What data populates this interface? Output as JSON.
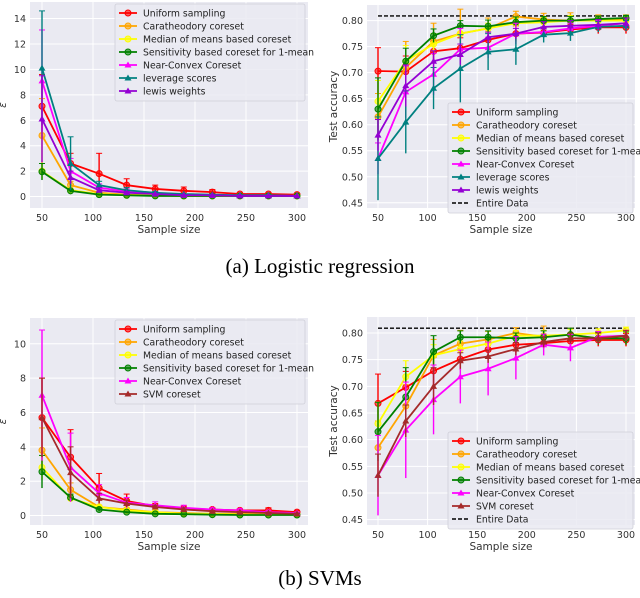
{
  "captions": [
    "(a)  Logistic regression",
    "(b)  SVMs"
  ],
  "chart_data": [
    {
      "type": "line",
      "xlabel": "Sample size",
      "ylabel": "ε",
      "x": [
        50,
        78,
        106,
        133,
        161,
        189,
        217,
        244,
        272,
        300
      ],
      "xticks": [
        50,
        100,
        150,
        200,
        250,
        300
      ],
      "yticks": [
        0,
        2,
        4,
        6,
        8,
        10,
        12,
        14
      ],
      "ylim": [
        -0.9,
        15.3
      ],
      "grid": true,
      "legend": "top-right",
      "series": [
        {
          "name": "Uniform sampling",
          "color": "#ff0000",
          "marker": "circle",
          "values": [
            7.1,
            2.6,
            1.8,
            0.9,
            0.6,
            0.45,
            0.35,
            0.2,
            0.2,
            0.15
          ],
          "err": [
            2.5,
            0.8,
            1.6,
            0.5,
            0.3,
            0.3,
            0.2,
            0.1,
            0.1,
            0.1
          ]
        },
        {
          "name": "Caratheodory coreset",
          "color": "#ffa500",
          "marker": "circle",
          "values": [
            4.8,
            0.9,
            0.3,
            0.15,
            0.1,
            0.05,
            0.05,
            0.05,
            0.05,
            0.05
          ],
          "err": [
            2.9,
            0.3,
            0.1,
            0.1,
            0,
            0,
            0,
            0,
            0,
            0
          ]
        },
        {
          "name": "Median of means based coreset",
          "color": "#ffff00",
          "marker": "circle",
          "values": [
            2.0,
            0.5,
            0.2,
            0.1,
            0.1,
            0.05,
            0.05,
            0.05,
            0.05,
            0.05
          ],
          "err": [
            0.6,
            0.1,
            0,
            0,
            0,
            0,
            0,
            0,
            0,
            0
          ]
        },
        {
          "name": "Sensitivity based coreset for 1-mean",
          "color": "#008000",
          "marker": "circle",
          "values": [
            1.95,
            0.45,
            0.15,
            0.1,
            0.05,
            0.05,
            0.05,
            0.05,
            0.05,
            0.05
          ],
          "err": [
            0.65,
            0.1,
            0,
            0,
            0,
            0,
            0,
            0,
            0,
            0
          ]
        },
        {
          "name": "Near-Convex Coreset",
          "color": "#ff00ff",
          "marker": "triangle",
          "values": [
            9.1,
            2.0,
            0.7,
            0.4,
            0.25,
            0.15,
            0.1,
            0.1,
            0.1,
            0.05
          ],
          "err": [
            4.0,
            1.0,
            0.3,
            0.2,
            0.1,
            0,
            0,
            0,
            0,
            0
          ]
        },
        {
          "name": "leverage scores",
          "color": "#008080",
          "marker": "triangle",
          "values": [
            10.1,
            2.6,
            0.9,
            0.5,
            0.3,
            0.2,
            0.15,
            0.1,
            0.1,
            0.05
          ],
          "err": [
            4.5,
            2.1,
            0.3,
            0.2,
            0.1,
            0,
            0,
            0,
            0,
            0
          ]
        },
        {
          "name": "lewis weights",
          "color": "#9400d3",
          "marker": "triangle",
          "values": [
            6.1,
            1.5,
            0.5,
            0.3,
            0.2,
            0.1,
            0.1,
            0.05,
            0.05,
            0.05
          ],
          "err": [
            3.4,
            0.5,
            0.2,
            0.1,
            0,
            0,
            0,
            0,
            0,
            0
          ]
        }
      ]
    },
    {
      "type": "line",
      "xlabel": "Sample size",
      "ylabel": "Test accuracy",
      "x": [
        50,
        78,
        106,
        133,
        161,
        189,
        217,
        244,
        272,
        300
      ],
      "xticks": [
        50,
        100,
        150,
        200,
        250,
        300
      ],
      "yticks": [
        0.45,
        0.5,
        0.55,
        0.6,
        0.65,
        0.7,
        0.75,
        0.8
      ],
      "ylim": [
        0.44,
        0.83
      ],
      "grid": true,
      "legend": "lower-right",
      "series": [
        {
          "name": "Uniform sampling",
          "color": "#ff0000",
          "marker": "circle",
          "values": [
            0.703,
            0.702,
            0.741,
            0.747,
            0.763,
            0.775,
            0.777,
            0.783,
            0.787,
            0.787
          ],
          "err": [
            0.045,
            0.03,
            0.02,
            0.02,
            0.015,
            0.015,
            0.01,
            0.01,
            0.012,
            0.012
          ]
        },
        {
          "name": "Caratheodory coreset",
          "color": "#ffa500",
          "marker": "circle",
          "values": [
            0.615,
            0.71,
            0.76,
            0.775,
            0.785,
            0.808,
            0.802,
            0.8,
            0.803,
            0.803
          ],
          "err": [
            0.045,
            0.05,
            0.035,
            0.047,
            0.02,
            0.01,
            0.012,
            0.015,
            0.008,
            0.008
          ]
        },
        {
          "name": "Median of means based coreset",
          "color": "#ffff00",
          "marker": "circle",
          "values": [
            0.645,
            0.722,
            0.755,
            0.775,
            0.785,
            0.795,
            0.797,
            0.8,
            0.8,
            0.8
          ],
          "err": [
            0.04,
            0.03,
            0.02,
            0.015,
            0.01,
            0.01,
            0.01,
            0.01,
            0.008,
            0.008
          ]
        },
        {
          "name": "Sensitivity based coreset for 1-mean",
          "color": "#008000",
          "marker": "circle",
          "values": [
            0.63,
            0.722,
            0.771,
            0.79,
            0.789,
            0.797,
            0.8,
            0.8,
            0.803,
            0.805
          ],
          "err": [
            0.06,
            0.025,
            0.013,
            0.01,
            0.012,
            0.01,
            0.008,
            0.008,
            0.006,
            0.005
          ]
        },
        {
          "name": "Near-Convex Coreset",
          "color": "#ff00ff",
          "marker": "triangle",
          "values": [
            0.535,
            0.663,
            0.697,
            0.745,
            0.748,
            0.775,
            0.778,
            0.785,
            0.79,
            0.795
          ],
          "err": [
            0.03,
            0.05,
            0.04,
            0.04,
            0.02,
            0.02,
            0.01,
            0.01,
            0.01,
            0.01
          ]
        },
        {
          "name": "leverage scores",
          "color": "#008080",
          "marker": "triangle",
          "values": [
            0.535,
            0.605,
            0.67,
            0.708,
            0.74,
            0.745,
            0.773,
            0.776,
            0.788,
            0.79
          ],
          "err": [
            0.08,
            0.06,
            0.04,
            0.065,
            0.035,
            0.03,
            0.015,
            0.015,
            0.01,
            0.01
          ]
        },
        {
          "name": "lewis weights",
          "color": "#9400d3",
          "marker": "triangle",
          "values": [
            0.58,
            0.675,
            0.722,
            0.735,
            0.768,
            0.775,
            0.788,
            0.79,
            0.792,
            0.795
          ],
          "err": [
            0.03,
            0.04,
            0.02,
            0.02,
            0.01,
            0.01,
            0.01,
            0.01,
            0.01,
            0.01
          ]
        }
      ],
      "reference_line": {
        "name": "Entire Data",
        "color": "#000000",
        "value": 0.809
      }
    },
    {
      "type": "line",
      "xlabel": "Sample size",
      "ylabel": "ε",
      "x": [
        50,
        78,
        106,
        133,
        161,
        189,
        217,
        244,
        272,
        300
      ],
      "xticks": [
        50,
        100,
        150,
        200,
        250,
        300
      ],
      "yticks": [
        0,
        2,
        4,
        6,
        8,
        10
      ],
      "ylim": [
        -0.55,
        11.5
      ],
      "grid": true,
      "legend": "top-right",
      "series": [
        {
          "name": "Uniform sampling",
          "color": "#ff0000",
          "marker": "circle",
          "values": [
            5.7,
            3.4,
            1.6,
            0.85,
            0.55,
            0.4,
            0.35,
            0.3,
            0.3,
            0.2
          ],
          "err": [
            2.3,
            1.6,
            0.85,
            0.4,
            0.15,
            0.15,
            0.1,
            0.1,
            0.15,
            0.1
          ]
        },
        {
          "name": "Caratheodory coreset",
          "color": "#ffa500",
          "marker": "circle",
          "values": [
            3.8,
            1.5,
            0.5,
            0.35,
            0.2,
            0.15,
            0.1,
            0.1,
            0.1,
            0.05
          ],
          "err": [
            1.3,
            0.4,
            0.1,
            0.1,
            0,
            0,
            0,
            0,
            0,
            0
          ]
        },
        {
          "name": "Median of means based coreset",
          "color": "#ffff00",
          "marker": "circle",
          "values": [
            2.8,
            1.0,
            0.5,
            0.3,
            0.2,
            0.1,
            0.1,
            0.05,
            0.05,
            0.05
          ],
          "err": [
            0.7,
            0.2,
            0.1,
            0,
            0,
            0,
            0,
            0,
            0,
            0
          ]
        },
        {
          "name": "Sensitivity based coreset for 1-mean",
          "color": "#008000",
          "marker": "circle",
          "values": [
            2.55,
            1.05,
            0.35,
            0.2,
            0.1,
            0.08,
            0.05,
            0.03,
            0.03,
            0.03
          ],
          "err": [
            0.95,
            0.2,
            0.1,
            0,
            0,
            0,
            0,
            0,
            0,
            0
          ]
        },
        {
          "name": "Near-Convex Coreset",
          "color": "#ff00ff",
          "marker": "triangle",
          "values": [
            7.0,
            2.8,
            1.3,
            0.75,
            0.6,
            0.45,
            0.35,
            0.3,
            0.2,
            0.15
          ],
          "err": [
            3.8,
            2.0,
            0.5,
            0.3,
            0.2,
            0.15,
            0.1,
            0.1,
            0.1,
            0.05
          ]
        },
        {
          "name": "SVM coreset",
          "color": "#a52a2a",
          "marker": "triangle",
          "values": [
            5.7,
            2.5,
            1.0,
            0.7,
            0.5,
            0.35,
            0.25,
            0.2,
            0.15,
            0.1
          ],
          "err": [
            2.3,
            1.5,
            0.3,
            0.2,
            0.1,
            0.1,
            0.05,
            0.05,
            0.05,
            0.05
          ]
        }
      ]
    },
    {
      "type": "line",
      "xlabel": "Sample size",
      "ylabel": "Test accuracy",
      "x": [
        50,
        78,
        106,
        133,
        161,
        189,
        217,
        244,
        272,
        300
      ],
      "xticks": [
        50,
        100,
        150,
        200,
        250,
        300
      ],
      "yticks": [
        0.45,
        0.5,
        0.55,
        0.6,
        0.65,
        0.7,
        0.75,
        0.8
      ],
      "ylim": [
        0.44,
        0.83
      ],
      "grid": true,
      "legend": "lower-right",
      "series": [
        {
          "name": "Uniform sampling",
          "color": "#ff0000",
          "marker": "circle",
          "values": [
            0.668,
            0.698,
            0.729,
            0.751,
            0.769,
            0.778,
            0.781,
            0.785,
            0.787,
            0.787
          ],
          "err": [
            0.055,
            0.03,
            0.025,
            0.02,
            0.015,
            0.015,
            0.01,
            0.01,
            0.012,
            0.012
          ]
        },
        {
          "name": "Caratheodory coreset",
          "color": "#ffa500",
          "marker": "circle",
          "values": [
            0.585,
            0.663,
            0.758,
            0.78,
            0.788,
            0.8,
            0.793,
            0.797,
            0.79,
            0.79
          ],
          "err": [
            0.05,
            0.04,
            0.03,
            0.025,
            0.015,
            0.01,
            0.02,
            0.012,
            0.012,
            0.012
          ]
        },
        {
          "name": "Median of means based coreset",
          "color": "#ffff00",
          "marker": "circle",
          "values": [
            0.63,
            0.718,
            0.758,
            0.77,
            0.78,
            0.795,
            0.795,
            0.797,
            0.8,
            0.805
          ],
          "err": [
            0.04,
            0.03,
            0.02,
            0.015,
            0.012,
            0.01,
            0.01,
            0.01,
            0.008,
            0.006
          ]
        },
        {
          "name": "Sensitivity based coreset for 1-mean",
          "color": "#008000",
          "marker": "circle",
          "values": [
            0.615,
            0.68,
            0.765,
            0.792,
            0.792,
            0.79,
            0.792,
            0.797,
            0.79,
            0.79
          ],
          "err": [
            0.055,
            0.055,
            0.03,
            0.012,
            0.012,
            0.01,
            0.012,
            0.012,
            0.012,
            0.012
          ]
        },
        {
          "name": "Near-Convex Coreset",
          "color": "#ff00ff",
          "marker": "triangle",
          "values": [
            0.533,
            0.618,
            0.675,
            0.718,
            0.733,
            0.753,
            0.778,
            0.772,
            0.793,
            0.795
          ],
          "err": [
            0.075,
            0.09,
            0.065,
            0.05,
            0.05,
            0.04,
            0.02,
            0.025,
            0.01,
            0.01
          ]
        },
        {
          "name": "SVM coreset",
          "color": "#a52a2a",
          "marker": "triangle",
          "values": [
            0.533,
            0.635,
            0.7,
            0.748,
            0.756,
            0.77,
            0.783,
            0.79,
            0.79,
            0.795
          ],
          "err": [
            0.04,
            0.03,
            0.035,
            0.015,
            0.012,
            0.012,
            0.01,
            0.01,
            0.01,
            0.01
          ]
        }
      ],
      "reference_line": {
        "name": "Entire Data",
        "color": "#000000",
        "value": 0.809
      }
    }
  ]
}
